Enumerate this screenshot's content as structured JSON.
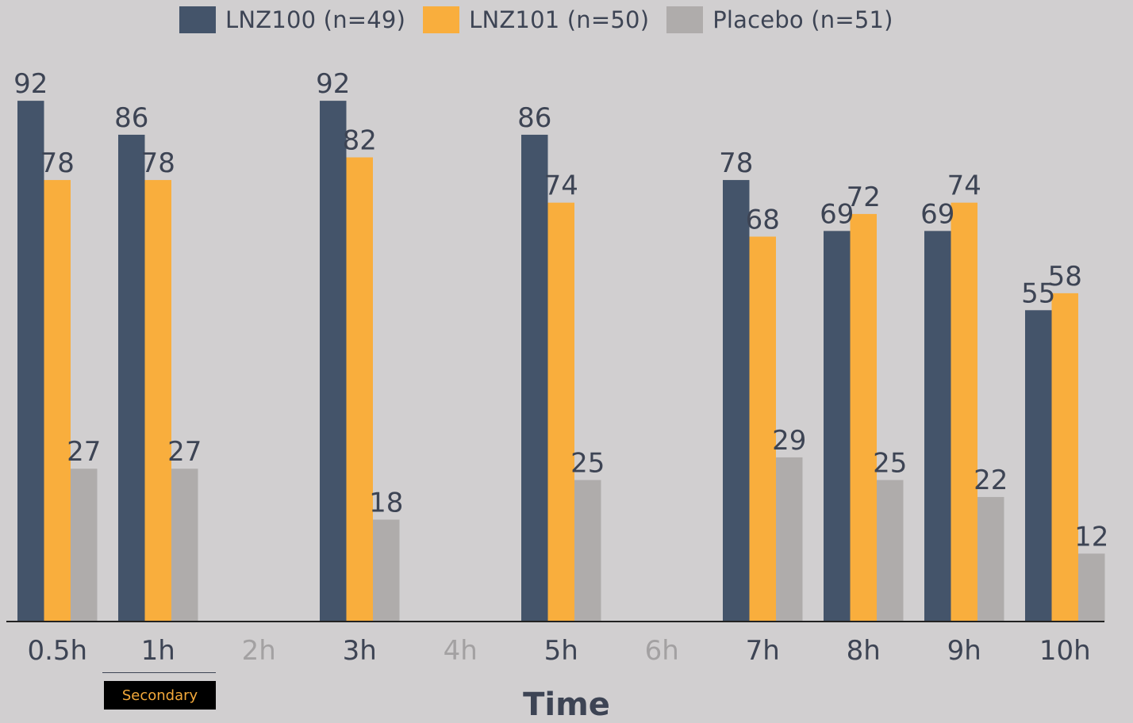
{
  "chart_data": {
    "type": "bar",
    "categories": [
      "0.5h",
      "1h",
      "2h",
      "3h",
      "4h",
      "5h",
      "6h",
      "7h",
      "8h",
      "9h",
      "10h"
    ],
    "dimmed_categories": [
      "2h",
      "4h",
      "6h"
    ],
    "series": [
      {
        "name": "LNZ100 (n=49)",
        "color": "#44546a",
        "values": [
          92,
          86,
          null,
          92,
          null,
          86,
          null,
          78,
          69,
          69,
          55
        ]
      },
      {
        "name": "LNZ101 (n=50)",
        "color": "#f9ae3d",
        "values": [
          78,
          78,
          null,
          82,
          null,
          74,
          null,
          68,
          72,
          74,
          58
        ]
      },
      {
        "name": "Placebo (n=51)",
        "color": "#afacab",
        "values": [
          27,
          27,
          null,
          18,
          null,
          25,
          null,
          29,
          25,
          22,
          12
        ]
      }
    ],
    "xlabel": "Time",
    "ylabel": "",
    "ylim": [
      0,
      100
    ],
    "grid": false,
    "legend_position": "top-center",
    "annotation": {
      "category": "1h",
      "label": "Secondary"
    }
  },
  "colors": {
    "background": "#d1cfd0",
    "text": "#3d4454",
    "dimmed_text": "#a3a1a2",
    "badge_bg": "#000000",
    "badge_text": "#f4a93a"
  }
}
